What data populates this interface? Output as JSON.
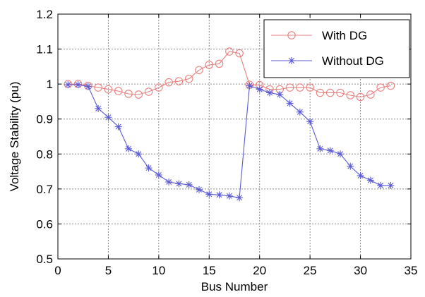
{
  "chart_data": {
    "type": "line",
    "xlabel": "Bus Number",
    "ylabel": "Voltage Stability (pu)",
    "xlim": [
      0,
      35
    ],
    "ylim": [
      0.5,
      1.2
    ],
    "xticks": [
      0,
      5,
      10,
      15,
      20,
      25,
      30,
      35
    ],
    "yticks": [
      0.5,
      0.6,
      0.7,
      0.8,
      0.9,
      1,
      1.1,
      1.2
    ],
    "xtick_labels": [
      "0",
      "5",
      "10",
      "15",
      "20",
      "25",
      "30",
      "35"
    ],
    "ytick_labels": [
      "0.5",
      "0.6",
      "0.7",
      "0.8",
      "0.9",
      "1",
      "1.1",
      "1.2"
    ],
    "grid": true,
    "legend_position": "top-right",
    "series": [
      {
        "name": "With DG",
        "color": "#e8807f",
        "marker": "circle",
        "x": [
          1,
          2,
          3,
          4,
          5,
          6,
          7,
          8,
          9,
          10,
          11,
          12,
          13,
          14,
          15,
          16,
          17,
          18,
          19,
          20,
          21,
          22,
          23,
          24,
          25,
          26,
          27,
          28,
          29,
          30,
          31,
          32,
          33
        ],
        "y": [
          1.0,
          1.0,
          0.995,
          0.99,
          0.985,
          0.98,
          0.972,
          0.97,
          0.978,
          0.99,
          1.005,
          1.008,
          1.015,
          1.04,
          1.055,
          1.058,
          1.093,
          1.088,
          0.998,
          0.997,
          0.985,
          0.985,
          0.99,
          0.99,
          0.99,
          0.975,
          0.975,
          0.975,
          0.968,
          0.963,
          0.97,
          0.99,
          0.995
        ]
      },
      {
        "name": "Without DG",
        "color": "#5b5bd6",
        "marker": "star",
        "x": [
          1,
          2,
          3,
          4,
          5,
          6,
          7,
          8,
          9,
          10,
          11,
          12,
          13,
          14,
          15,
          16,
          17,
          18,
          19,
          20,
          21,
          22,
          23,
          24,
          25,
          26,
          27,
          28,
          29,
          30,
          31,
          32,
          33
        ],
        "y": [
          0.998,
          0.998,
          0.993,
          0.93,
          0.905,
          0.878,
          0.815,
          0.8,
          0.76,
          0.74,
          0.72,
          0.715,
          0.712,
          0.698,
          0.685,
          0.683,
          0.68,
          0.675,
          0.995,
          0.985,
          0.975,
          0.97,
          0.945,
          0.92,
          0.893,
          0.815,
          0.81,
          0.8,
          0.765,
          0.738,
          0.725,
          0.71,
          0.71
        ]
      }
    ]
  }
}
